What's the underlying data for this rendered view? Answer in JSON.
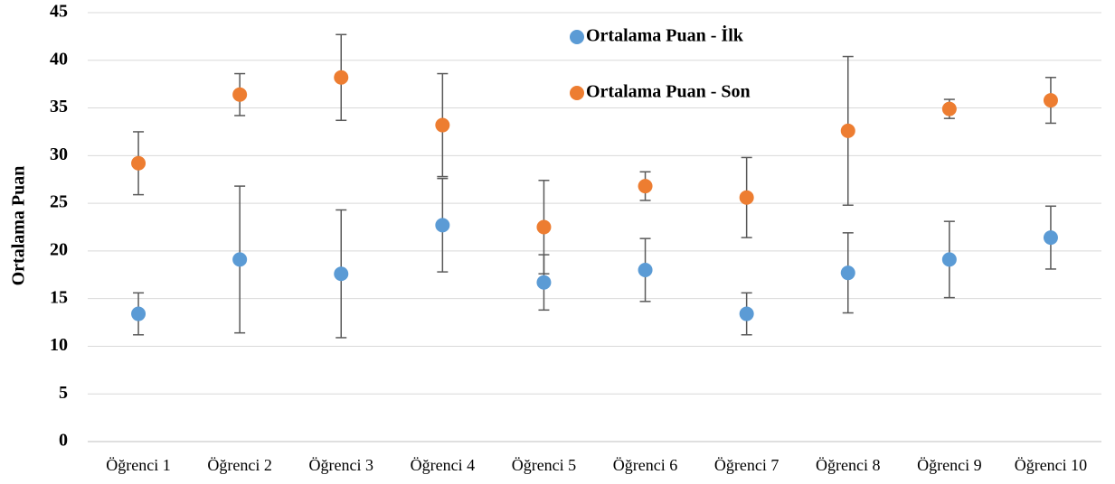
{
  "chart_data": {
    "type": "scatter",
    "y_label": "Ortalama Puan",
    "categories": [
      "Öğrenci 1",
      "Öğrenci 2",
      "Öğrenci 3",
      "Öğrenci 4",
      "Öğrenci 5",
      "Öğrenci 6",
      "Öğrenci 7",
      "Öğrenci 8",
      "Öğrenci 9",
      "Öğrenci 10"
    ],
    "series": [
      {
        "name": "Ortalama Puan - İlk",
        "color": "#5b9bd5",
        "values": [
          13.4,
          19.1,
          17.6,
          22.7,
          16.7,
          18.0,
          13.4,
          17.7,
          19.1,
          21.4
        ],
        "errors": [
          2.2,
          7.7,
          6.7,
          4.9,
          2.9,
          3.3,
          2.2,
          4.2,
          4.0,
          3.3
        ]
      },
      {
        "name": "Ortalama Puan - Son",
        "color": "#ed7d31",
        "values": [
          29.2,
          36.4,
          38.2,
          33.2,
          22.5,
          26.8,
          25.6,
          32.6,
          34.9,
          35.8
        ],
        "errors": [
          3.3,
          2.2,
          4.5,
          5.4,
          4.9,
          1.5,
          4.2,
          7.8,
          1.0,
          2.4
        ]
      }
    ],
    "ylim": [
      0,
      45
    ],
    "yticks": [
      0,
      5,
      10,
      15,
      20,
      25,
      30,
      35,
      40,
      45
    ],
    "grid": true,
    "legend": "upper center"
  }
}
